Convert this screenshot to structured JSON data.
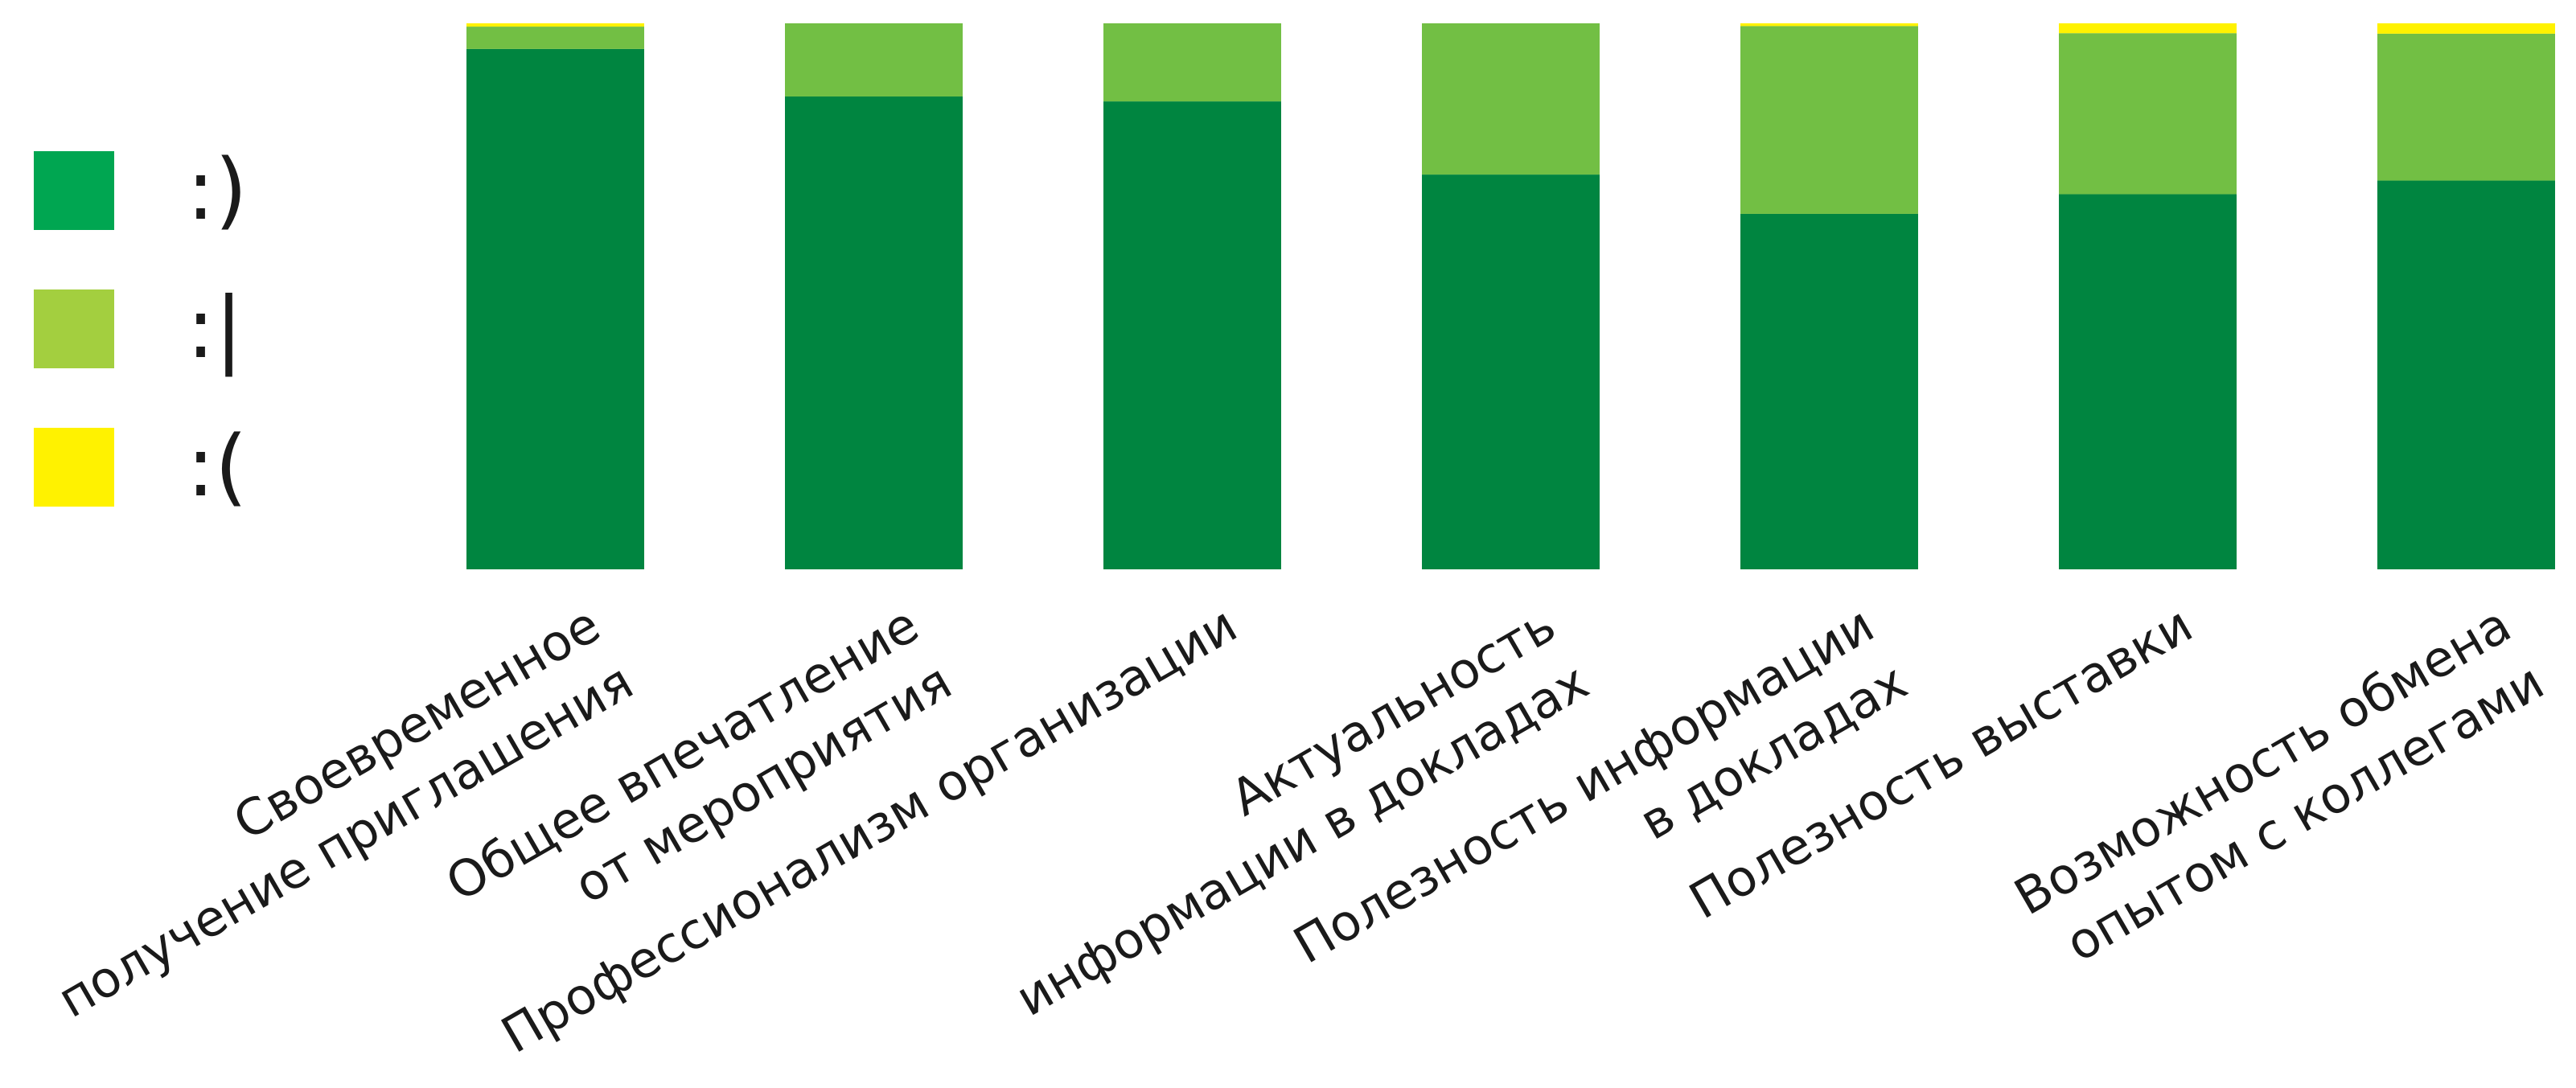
{
  "chart_data": {
    "type": "bar",
    "stacked": true,
    "normalized": true,
    "categories": [
      [
        "Своевременное",
        "получение приглашения"
      ],
      [
        "Общее впечатление",
        "от мероприятия"
      ],
      [
        "Профессионализм организации"
      ],
      [
        "Актуальность",
        "информации в докладах"
      ],
      [
        "Полезность информации",
        "в докладах"
      ],
      [
        "Полезность выставки"
      ],
      [
        "Возможность обмена",
        "опытом с коллегами"
      ]
    ],
    "series": [
      {
        "name": ":)",
        "color": "#008540",
        "legend_color": "#00A651",
        "values": [
          95.3,
          86.6,
          85.7,
          72.3,
          65.1,
          68.7,
          71.2
        ]
      },
      {
        "name": ":|",
        "color": "#72BF44",
        "legend_color": "#A3CF3F",
        "values": [
          4.1,
          13.4,
          14.3,
          27.7,
          34.4,
          29.5,
          26.9
        ]
      },
      {
        "name": ":(",
        "color": "#FFF200",
        "legend_color": "#FFF200",
        "values": [
          0.6,
          0.0,
          0.0,
          0.0,
          0.5,
          1.8,
          1.9
        ]
      }
    ],
    "ylim": [
      0,
      100
    ],
    "title": "",
    "xlabel": "",
    "ylabel": "",
    "grid": false,
    "legend_position": "left"
  }
}
